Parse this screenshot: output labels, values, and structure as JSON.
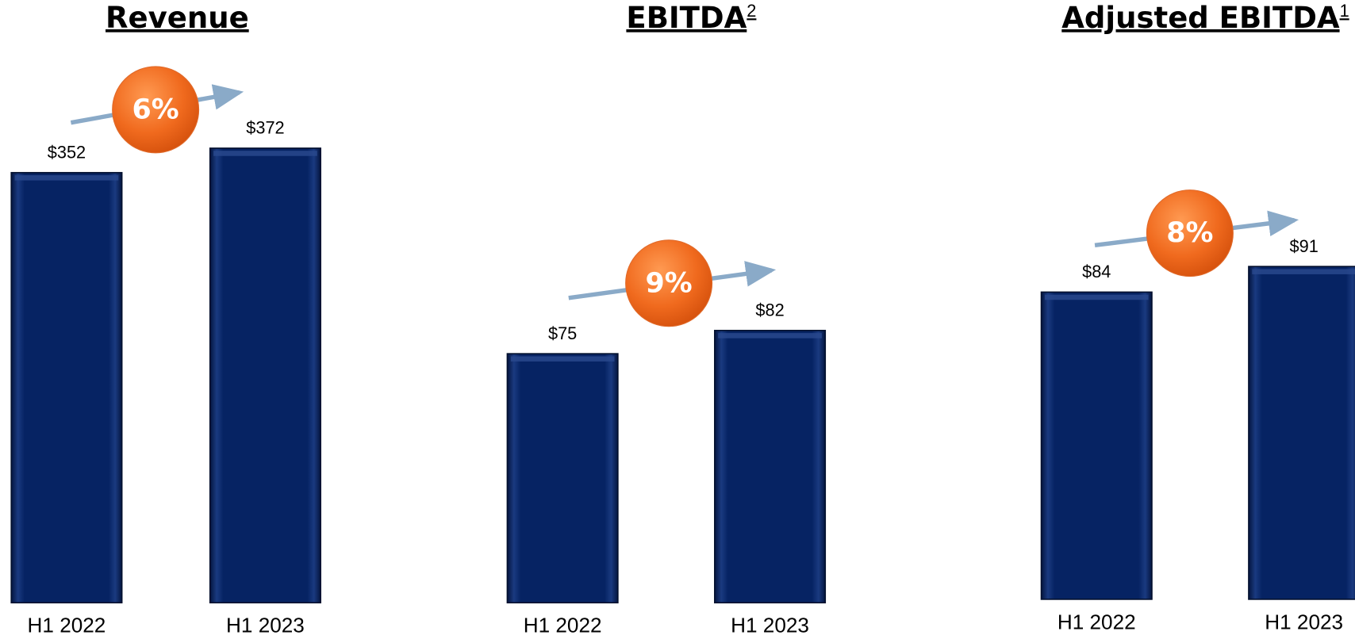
{
  "chart_data": [
    {
      "type": "bar",
      "title": "Revenue",
      "superscript": null,
      "annotation": "6%",
      "categories": [
        "H1 2022",
        "H1 2023"
      ],
      "values": [
        352,
        372
      ],
      "value_labels": [
        "$352",
        "$372"
      ],
      "color": "#0a2466"
    },
    {
      "type": "bar",
      "title": "EBITDA",
      "superscript": "2",
      "annotation": "9%",
      "categories": [
        "H1 2022",
        "H1 2023"
      ],
      "values": [
        75,
        82
      ],
      "value_labels": [
        "$75",
        "$82"
      ],
      "color": "#0a2466"
    },
    {
      "type": "bar",
      "title": "Adjusted EBITDA",
      "superscript": "1",
      "annotation": "8%",
      "categories": [
        "H1 2022",
        "H1 2023"
      ],
      "values": [
        84,
        91
      ],
      "value_labels": [
        "$84",
        "$91"
      ],
      "color": "#0a2466"
    }
  ]
}
